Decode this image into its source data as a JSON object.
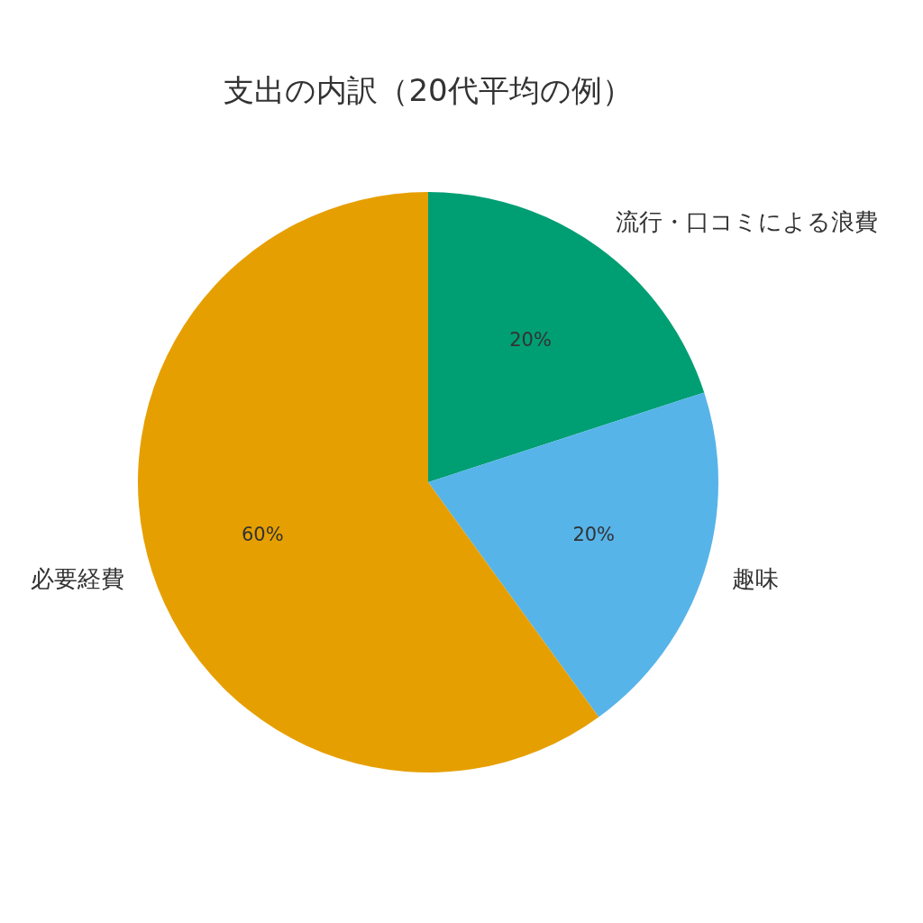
{
  "chart_data": {
    "type": "pie",
    "title": "支出の内訳（20代平均の例）",
    "categories": [
      "流行・口コミによる浪費",
      "趣味",
      "必要経費"
    ],
    "values": [
      20,
      20,
      60
    ],
    "colors": [
      "#009e73",
      "#56b4e9",
      "#e69f00"
    ],
    "value_labels": [
      "20%",
      "20%",
      "60%"
    ]
  }
}
